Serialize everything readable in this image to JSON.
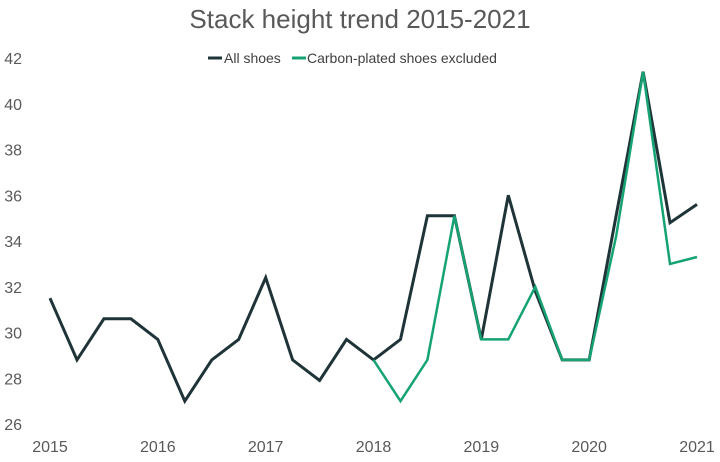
{
  "chart_data": {
    "type": "line",
    "title": "Stack height trend 2015-2021",
    "xlabel": "",
    "ylabel": "",
    "ylim": [
      26,
      42
    ],
    "yticks": [
      26,
      28,
      30,
      32,
      34,
      36,
      38,
      40,
      42
    ],
    "xlim": [
      2015,
      2021
    ],
    "xticks": [
      "2015",
      "2016",
      "2017",
      "2018",
      "2019",
      "2020",
      "2021"
    ],
    "grid": false,
    "legend_position": "top-center",
    "series": [
      {
        "name": "All shoes",
        "color": "#1f3438",
        "x": [
          2015.0,
          2015.25,
          2015.5,
          2015.75,
          2016.0,
          2016.25,
          2016.5,
          2016.75,
          2017.0,
          2017.25,
          2017.5,
          2017.75,
          2018.0,
          2018.25,
          2018.5,
          2018.75,
          2019.0,
          2019.25,
          2019.5,
          2019.75,
          2020.0,
          2020.25,
          2020.5,
          2020.75,
          2021.0
        ],
        "values": [
          31.5,
          28.8,
          30.6,
          30.6,
          29.7,
          27.0,
          28.8,
          29.7,
          32.4,
          28.8,
          27.9,
          29.7,
          28.8,
          29.7,
          35.1,
          35.1,
          29.7,
          36.0,
          31.8,
          28.8,
          28.8,
          35.1,
          41.4,
          34.8,
          35.6
        ]
      },
      {
        "name": "Carbon-plated shoes excluded",
        "color": "#16a374",
        "x": [
          2018.0,
          2018.25,
          2018.5,
          2018.75,
          2019.0,
          2019.25,
          2019.5,
          2019.75,
          2020.0,
          2020.25,
          2020.5,
          2020.75,
          2021.0
        ],
        "values": [
          28.8,
          27.0,
          28.8,
          35.1,
          29.7,
          29.7,
          32.0,
          28.8,
          28.8,
          34.2,
          41.4,
          33.0,
          33.3
        ]
      }
    ]
  }
}
